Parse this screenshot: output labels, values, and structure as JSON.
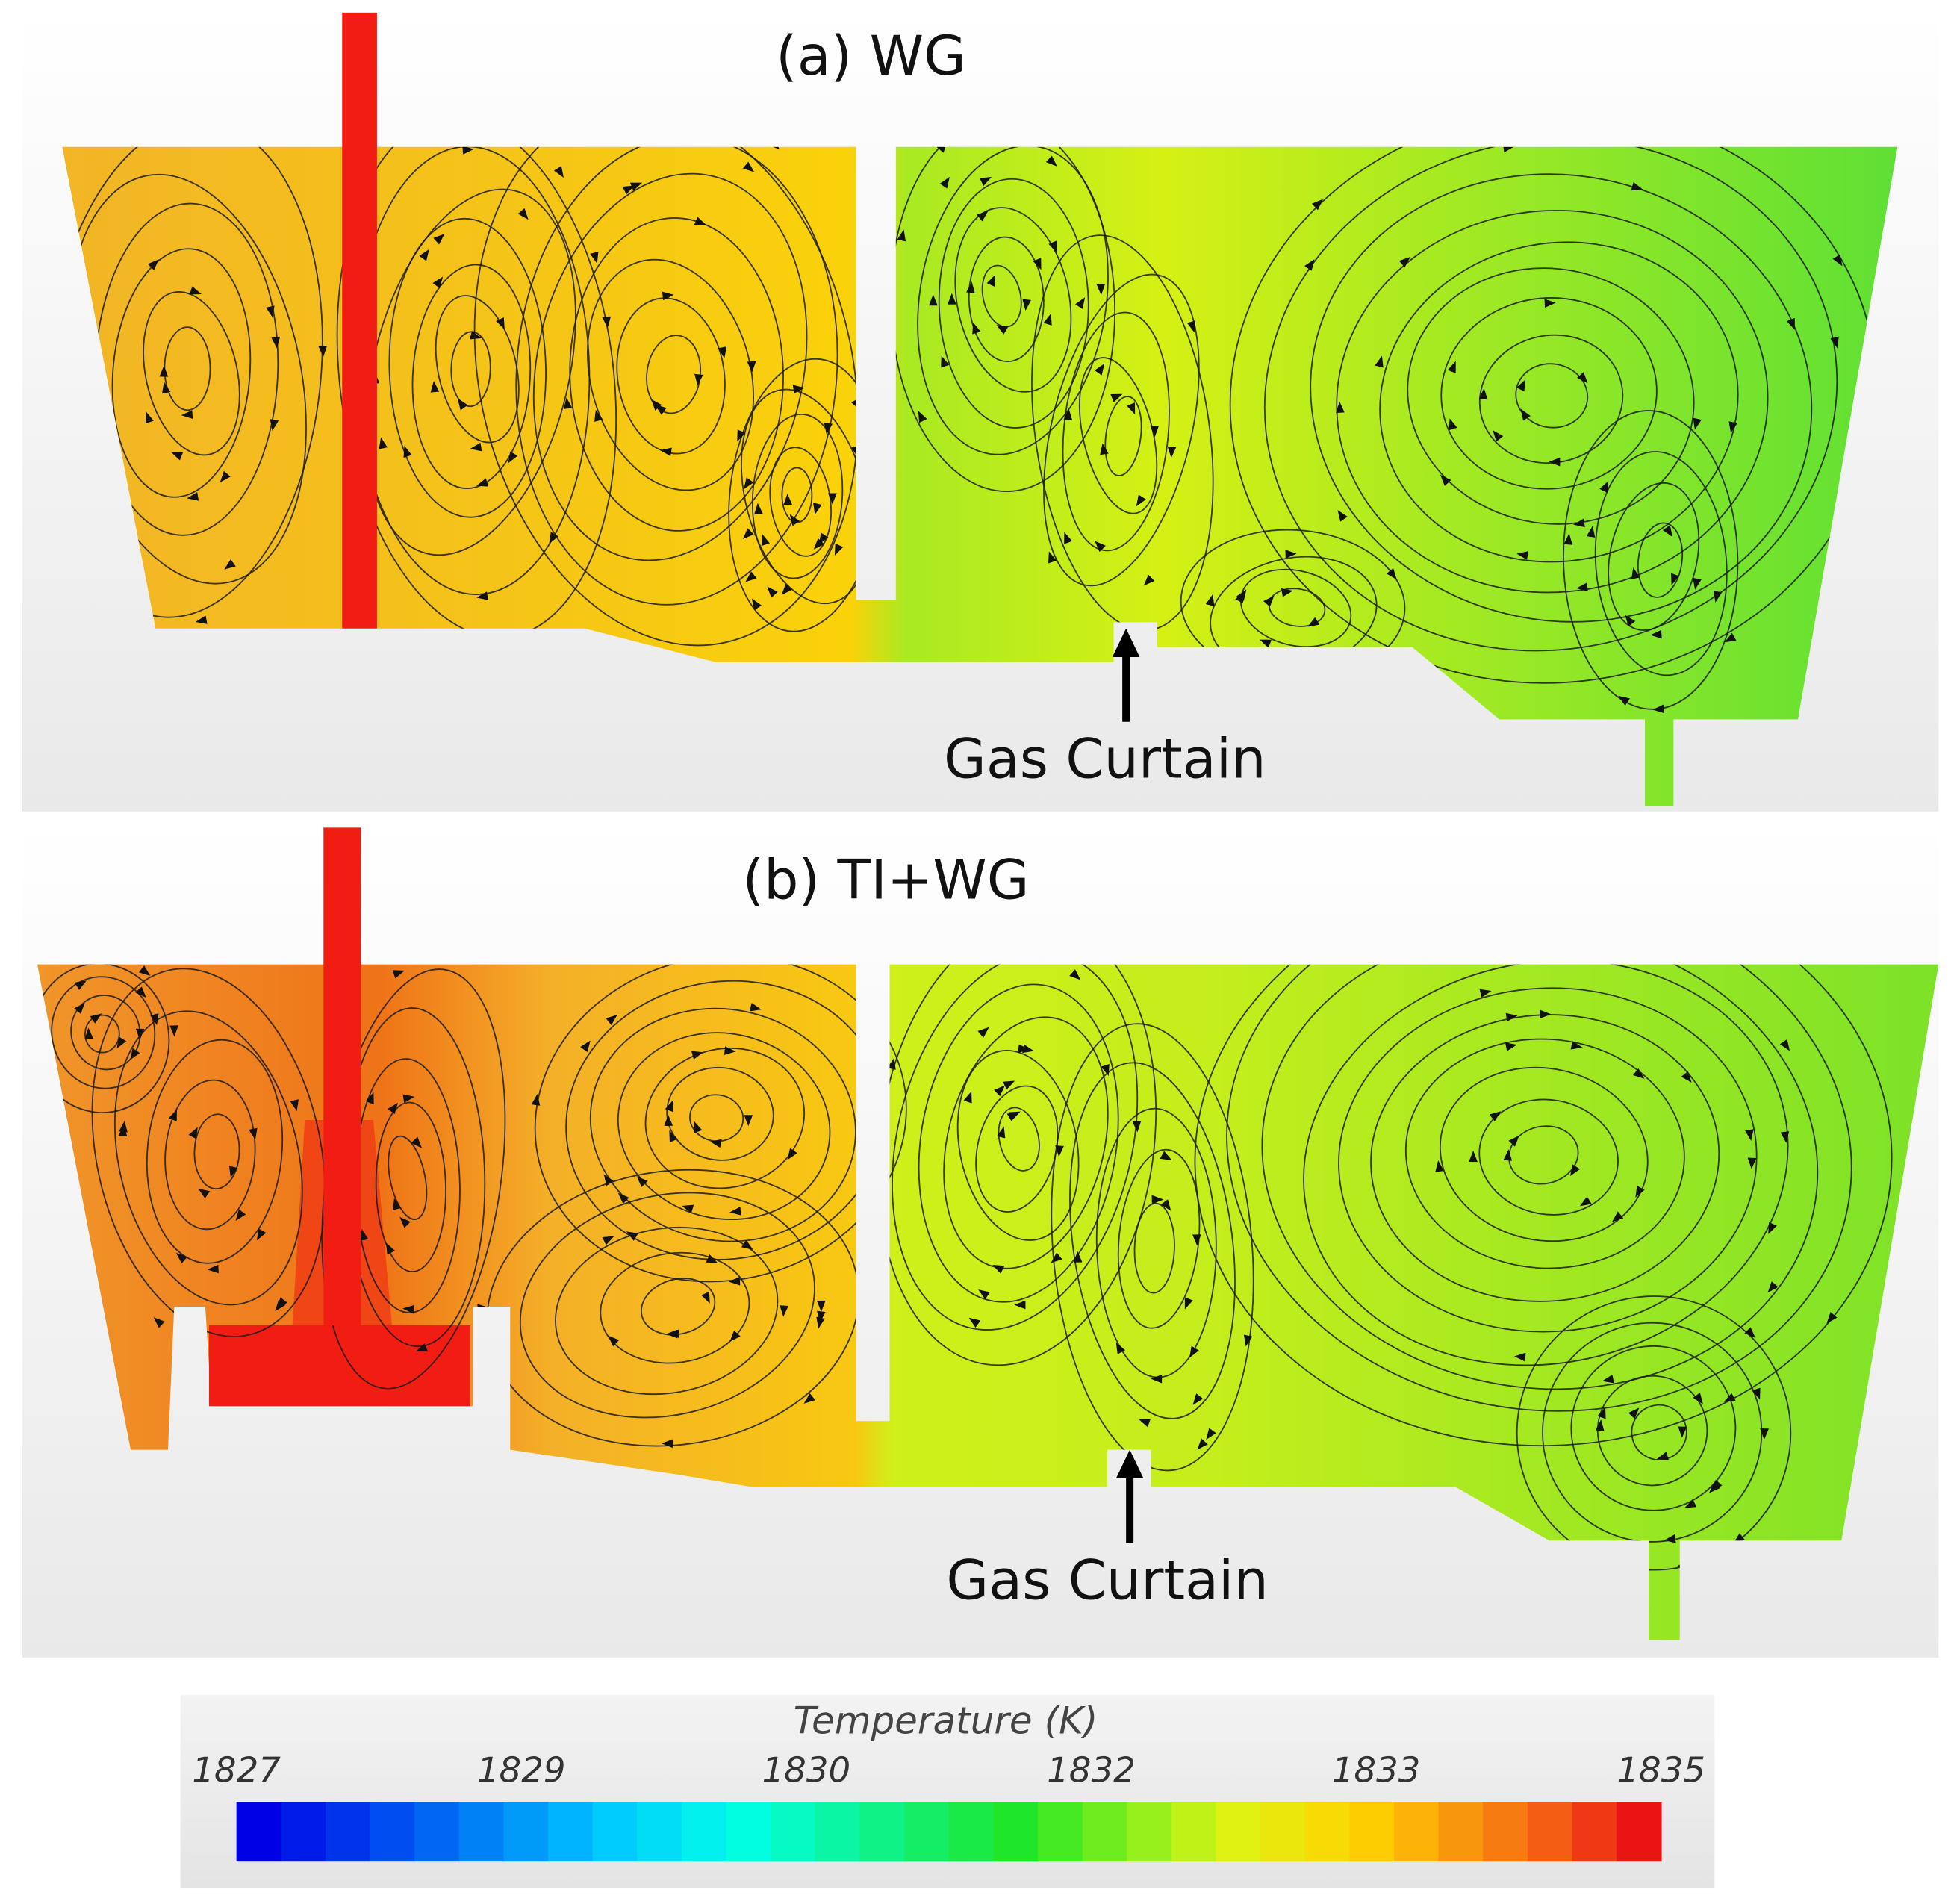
{
  "panels": [
    {
      "title": "(a) WG",
      "annotation": "Gas Curtain"
    },
    {
      "title": "(b) TI+WG",
      "annotation": "Gas Curtain"
    }
  ],
  "colorbar": {
    "title": "Temperature (K)",
    "ticks": [
      1827,
      1829,
      1830,
      1832,
      1833,
      1835
    ]
  }
}
